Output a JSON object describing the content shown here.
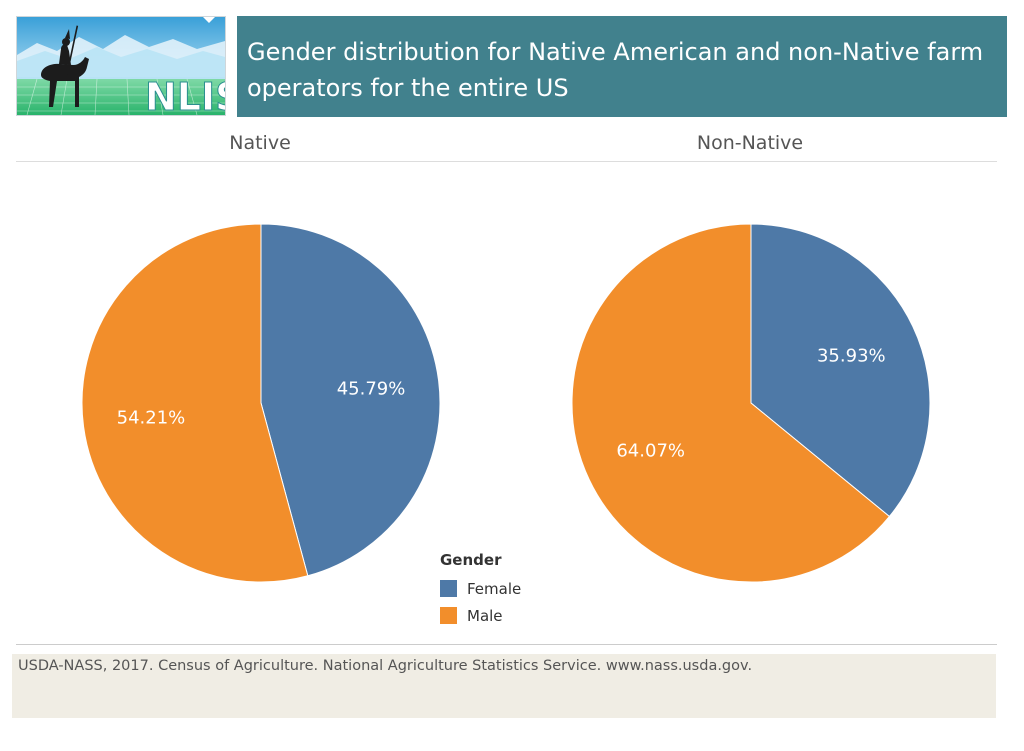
{
  "logo": {
    "text": "NLIS"
  },
  "title": "Gender distribution for Native American and non-Native farm operators for the entire US",
  "colors": {
    "female": "#4e79a7",
    "male": "#f28e2b",
    "title_bg": "#41818d"
  },
  "legend": {
    "title": "Gender",
    "items": [
      {
        "label": "Female",
        "color": "#4e79a7"
      },
      {
        "label": "Male",
        "color": "#f28e2b"
      }
    ]
  },
  "chart_data": [
    {
      "type": "pie",
      "title": "Native",
      "slices": [
        {
          "name": "Female",
          "value": 45.79,
          "label": "45.79%"
        },
        {
          "name": "Male",
          "value": 54.21,
          "label": "54.21%"
        }
      ]
    },
    {
      "type": "pie",
      "title": "Non-Native",
      "slices": [
        {
          "name": "Female",
          "value": 35.93,
          "label": "35.93%"
        },
        {
          "name": "Male",
          "value": 64.07,
          "label": "64.07%"
        }
      ]
    }
  ],
  "footer": {
    "source": "USDA-NASS, 2017. Census of Agriculture. National Agriculture Statistics Service. www.nass.usda.gov."
  }
}
